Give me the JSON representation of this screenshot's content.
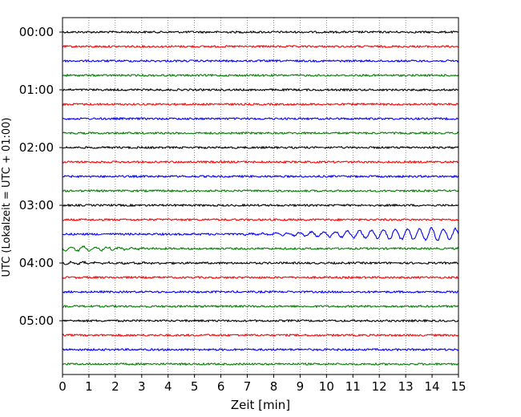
{
  "chart_data": {
    "type": "line",
    "subtype": "helicorder-seismogram",
    "xlabel": "Zeit  [min]",
    "ylabel": "UTC (Lokalzeit = UTC + 01:00)",
    "xlim": [
      0,
      15
    ],
    "x_ticks": [
      "0",
      "1",
      "2",
      "3",
      "4",
      "5",
      "6",
      "7",
      "8",
      "9",
      "10",
      "11",
      "12",
      "13",
      "14",
      "15"
    ],
    "y_ticks": [
      "00:00",
      "01:00",
      "02:00",
      "03:00",
      "04:00",
      "05:00"
    ],
    "grid": "vertical dotted lines at each minute",
    "trace_interval_min": 15,
    "trace_count": 24,
    "trace_colors": [
      "#000000",
      "#ff0000",
      "#0000ff",
      "#008000"
    ],
    "events": [
      {
        "trace_index": 14,
        "x_start_min": 5.5,
        "x_end_min": 15,
        "description": "growing oscillation",
        "peak_amplitude_relative": 1.0
      },
      {
        "trace_index": 15,
        "x_start_min": 0,
        "x_end_min": 4,
        "description": "decaying oscillation",
        "peak_amplitude_relative": 0.35
      },
      {
        "trace_index": 16,
        "x_start_min": 0,
        "x_end_min": 5,
        "description": "small oscillation",
        "peak_amplitude_relative": 0.15
      }
    ]
  }
}
